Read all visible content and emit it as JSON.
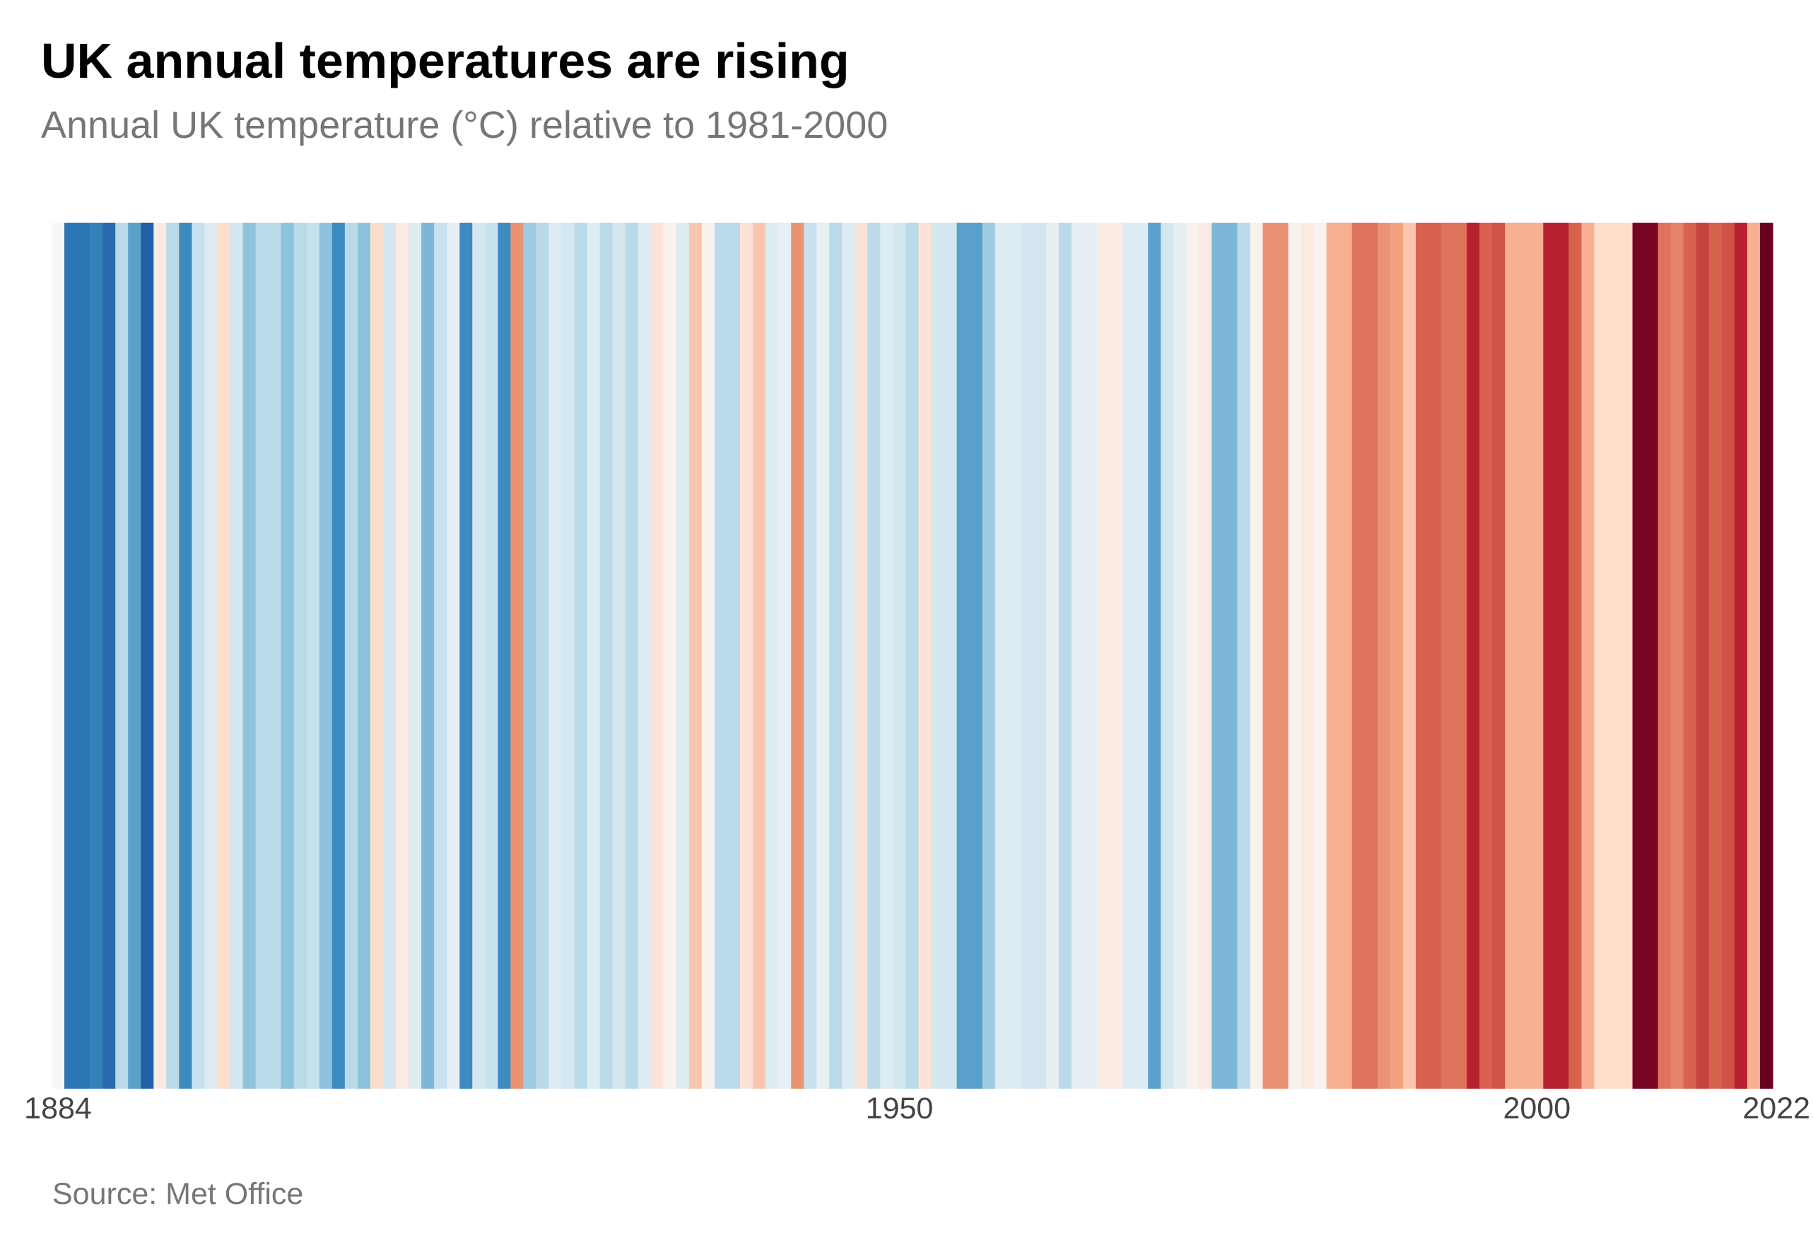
{
  "chart_data": {
    "type": "heatmap",
    "title": "UK annual temperatures are rising",
    "subtitle": "Annual UK temperature (°C) relative to 1981-2000",
    "source": "Source: Met Office",
    "xlabel": "",
    "ylabel": "",
    "x_start": 1884,
    "x_end": 2022,
    "x_ticks": [
      {
        "value": 1884,
        "label": "1884"
      },
      {
        "value": 1950,
        "label": "1950"
      },
      {
        "value": 2000,
        "label": "2000"
      },
      {
        "value": 2022,
        "label": "2022"
      }
    ],
    "legend": "none",
    "grid": false,
    "colormap": "RdBu (diverging, blue = cooler, red = warmer)",
    "color_scale": [
      "#08306b",
      "#2166ac",
      "#4393c3",
      "#92c5de",
      "#d1e5f0",
      "#f7f7f7",
      "#fddbc7",
      "#f4a582",
      "#d6604d",
      "#b2182b",
      "#67001f"
    ],
    "years": [
      1884,
      1885,
      1886,
      1887,
      1888,
      1889,
      1890,
      1891,
      1892,
      1893,
      1894,
      1895,
      1896,
      1897,
      1898,
      1899,
      1900,
      1901,
      1902,
      1903,
      1904,
      1905,
      1906,
      1907,
      1908,
      1909,
      1910,
      1911,
      1912,
      1913,
      1914,
      1915,
      1916,
      1917,
      1918,
      1919,
      1920,
      1921,
      1922,
      1923,
      1924,
      1925,
      1926,
      1927,
      1928,
      1929,
      1930,
      1931,
      1932,
      1933,
      1934,
      1935,
      1936,
      1937,
      1938,
      1939,
      1940,
      1941,
      1942,
      1943,
      1944,
      1945,
      1946,
      1947,
      1948,
      1949,
      1950,
      1951,
      1952,
      1953,
      1954,
      1955,
      1956,
      1957,
      1958,
      1959,
      1960,
      1961,
      1962,
      1963,
      1964,
      1965,
      1966,
      1967,
      1968,
      1969,
      1970,
      1971,
      1972,
      1973,
      1974,
      1975,
      1976,
      1977,
      1978,
      1979,
      1980,
      1981,
      1982,
      1983,
      1984,
      1985,
      1986,
      1987,
      1988,
      1989,
      1990,
      1991,
      1992,
      1993,
      1994,
      1995,
      1996,
      1997,
      1998,
      1999,
      2000,
      2001,
      2002,
      2003,
      2004,
      2005,
      2006,
      2007,
      2008,
      2009,
      2010,
      2011,
      2012,
      2013,
      2014,
      2015,
      2016,
      2017,
      2018,
      2019,
      2020,
      2021,
      2022
    ],
    "values": [
      0.0,
      -0.8,
      -0.8,
      -0.75,
      -0.85,
      -0.3,
      -0.6,
      -0.9,
      0.1,
      -0.3,
      -0.7,
      -0.25,
      -0.15,
      0.2,
      -0.2,
      -0.45,
      -0.3,
      -0.3,
      -0.45,
      -0.3,
      -0.25,
      -0.45,
      -0.7,
      -0.3,
      -0.45,
      0.2,
      -0.2,
      0.1,
      -0.15,
      -0.5,
      -0.25,
      -0.1,
      -0.7,
      -0.2,
      -0.25,
      -0.7,
      0.5,
      -0.4,
      -0.3,
      -0.15,
      -0.2,
      -0.3,
      -0.15,
      -0.3,
      -0.2,
      -0.3,
      -0.15,
      0.15,
      0.05,
      -0.15,
      0.3,
      0.05,
      -0.3,
      -0.3,
      0.15,
      0.3,
      -0.15,
      -0.1,
      0.5,
      -0.25,
      -0.1,
      -0.3,
      -0.15,
      0.15,
      -0.3,
      -0.15,
      -0.2,
      -0.3,
      0.15,
      -0.2,
      -0.2,
      -0.6,
      -0.6,
      -0.4,
      -0.15,
      -0.15,
      -0.2,
      -0.2,
      -0.1,
      -0.3,
      -0.1,
      -0.1,
      0.1,
      0.1,
      -0.15,
      -0.15,
      -0.6,
      -0.2,
      -0.1,
      0.05,
      0.1,
      -0.5,
      -0.5,
      -0.3,
      0.05,
      0.5,
      0.5,
      0.05,
      0.1,
      0.05,
      0.4,
      0.4,
      0.6,
      0.6,
      0.5,
      0.45,
      0.3,
      0.65,
      0.65,
      0.6,
      0.6,
      0.85,
      0.65,
      0.7,
      0.4,
      0.4,
      0.4,
      0.85,
      0.85,
      0.65,
      0.4,
      0.2,
      0.2,
      0.2,
      1.05,
      1.05,
      0.6,
      0.55,
      0.65,
      0.75,
      0.65,
      0.7,
      0.85,
      0.4,
      1.1
    ]
  }
}
